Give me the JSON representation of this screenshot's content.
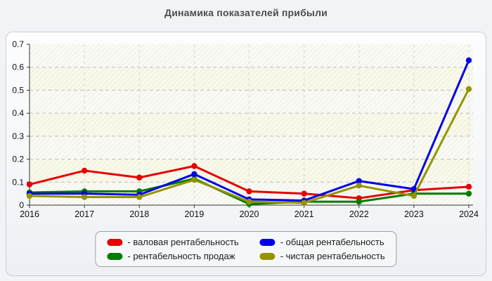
{
  "page_title": "Динамика показателей прибыли",
  "chart_data": {
    "type": "line",
    "title": "Динамика показателей прибыли",
    "x": [
      "2016",
      "2017",
      "2018",
      "2019",
      "2020",
      "2021",
      "2022",
      "2023",
      "2024"
    ],
    "xlabel": "",
    "ylabel": "",
    "ylim": [
      0,
      0.7
    ],
    "ytick_step": 0.1,
    "yticks": [
      "0",
      "0.1",
      "0.2",
      "0.3",
      "0.4",
      "0.5",
      "0.6",
      "0.7"
    ],
    "grid": true,
    "legend_position": "bottom",
    "series": [
      {
        "name": "валовая рентабельность",
        "legend_label": "- валовая рентабельность",
        "color": "#e60000",
        "values": [
          0.09,
          0.15,
          0.12,
          0.17,
          0.06,
          0.05,
          0.03,
          0.065,
          0.08
        ]
      },
      {
        "name": "рентабельность продаж",
        "legend_label": "- рентабельность продаж",
        "color": "#007d00",
        "values": [
          0.055,
          0.06,
          0.06,
          0.115,
          0.005,
          0.015,
          0.015,
          0.05,
          0.05
        ]
      },
      {
        "name": "общая рентабельность",
        "legend_label": "- общая рентабельность",
        "color": "#0000e6",
        "values": [
          0.05,
          0.05,
          0.045,
          0.135,
          0.025,
          0.02,
          0.105,
          0.07,
          0.63
        ]
      },
      {
        "name": "чистая рентабельность",
        "legend_label": "- чистая рентабельность",
        "color": "#949400",
        "values": [
          0.04,
          0.035,
          0.035,
          0.11,
          0.015,
          0.01,
          0.085,
          0.04,
          0.505
        ]
      }
    ],
    "legend_display_order": [
      0,
      2,
      1,
      3
    ],
    "band_colors": [
      "#fafbf4",
      "#fafaea"
    ],
    "grid_color_h": "#bdbdbd",
    "grid_color_v": "#d4d4d4",
    "axis_color": "#333333"
  }
}
